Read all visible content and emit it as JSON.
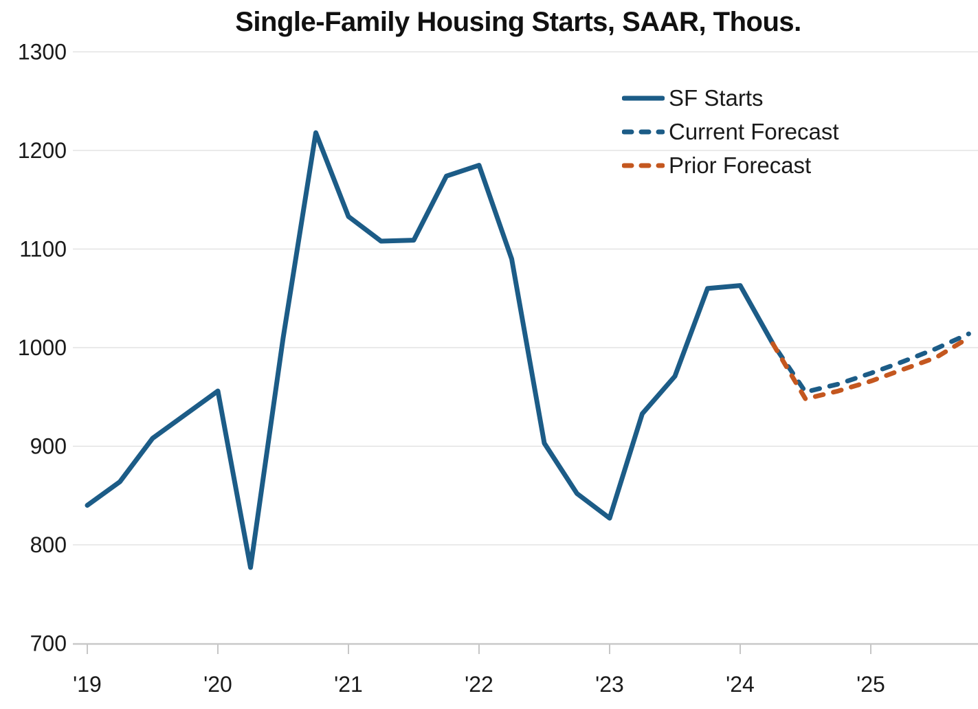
{
  "chart_data": {
    "type": "line",
    "title": "Single-Family Housing Starts, SAAR, Thous.",
    "xlabel": "",
    "ylabel": "",
    "ylim": [
      700,
      1300
    ],
    "y_ticks": [
      700,
      800,
      900,
      1000,
      1100,
      1200,
      1300
    ],
    "x_tick_labels": [
      "'19",
      "'20",
      "'21",
      "'22",
      "'23",
      "'24",
      "'25"
    ],
    "grid": "horizontal",
    "legend_position": "upper right",
    "quarters": [
      "2019 Q1",
      "2019 Q2",
      "2019 Q3",
      "2019 Q4",
      "2020 Q1",
      "2020 Q2",
      "2020 Q3",
      "2020 Q4",
      "2021 Q1",
      "2021 Q2",
      "2021 Q3",
      "2021 Q4",
      "2022 Q1",
      "2022 Q2",
      "2022 Q3",
      "2022 Q4",
      "2023 Q1",
      "2023 Q2",
      "2023 Q3",
      "2023 Q4",
      "2024 Q1",
      "2024 Q2",
      "2024 Q3",
      "2024 Q4",
      "2025 Q1",
      "2025 Q2",
      "2025 Q3",
      "2025 Q4"
    ],
    "series": [
      {
        "name": "SF Starts",
        "style": "solid",
        "color": "#1C5C87",
        "start": "2019 Q1",
        "values": [
          840,
          864,
          908,
          932,
          956,
          777,
          1010,
          1218,
          1133,
          1108,
          1109,
          1174,
          1185,
          1090,
          903,
          852,
          827,
          933,
          971,
          1060,
          1063,
          1004
        ]
      },
      {
        "name": "Current Forecast",
        "style": "dashed",
        "color": "#1C5C87",
        "start": "2024 Q2",
        "values": [
          1004,
          955,
          963,
          974,
          986,
          999,
          1014
        ]
      },
      {
        "name": "Prior Forecast",
        "style": "dashed",
        "color": "#C4571F",
        "start": "2024 Q2",
        "values": [
          1004,
          948,
          956,
          966,
          978,
          990,
          1010
        ]
      }
    ],
    "colors": {
      "grid": "#DEDEDE",
      "axis": "#C6C6C6",
      "tick_label": "#1a1a1a",
      "title": "#111111"
    }
  }
}
